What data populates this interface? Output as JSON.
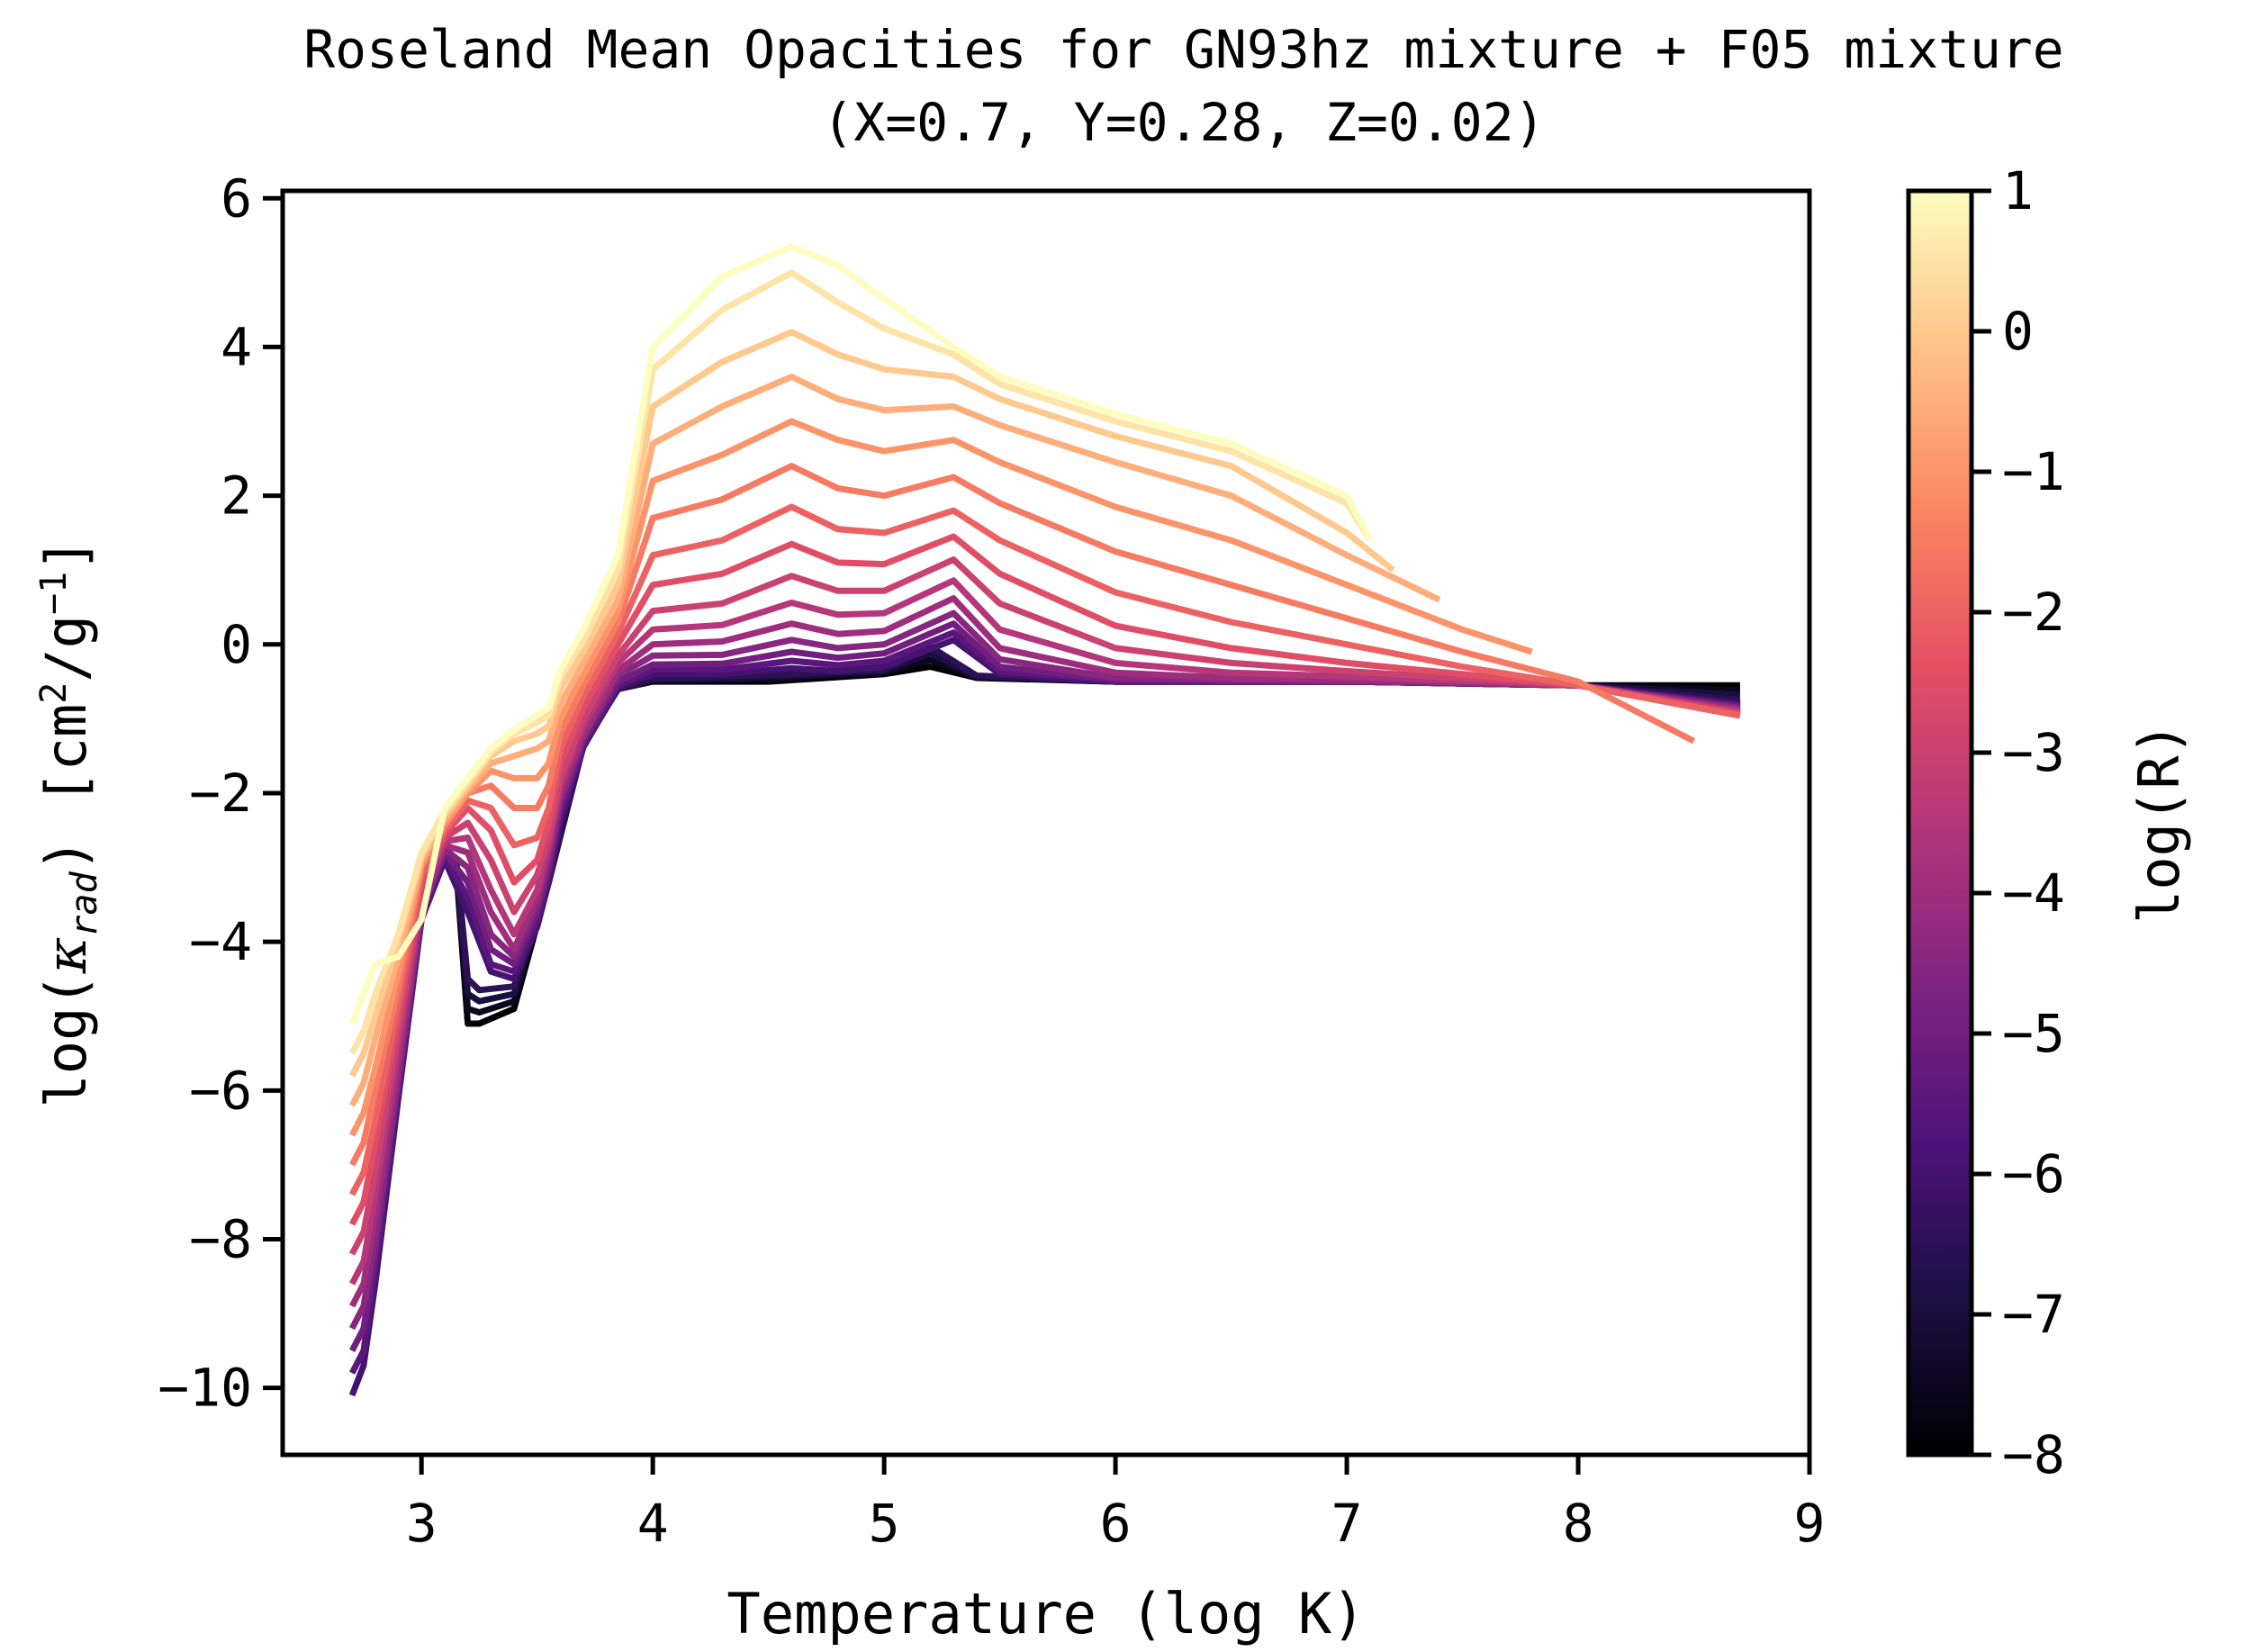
{
  "chart_data": {
    "type": "line",
    "title": "Roseland Mean Opacities for GN93hz mixture + F05 mixture",
    "subtitle": "(X=0.7, Y=0.28, Z=0.02)",
    "xlabel": "Temperature (log K)",
    "ylabel": {
      "prefix": "log(",
      "kappa": "κ",
      "kappa_sub": "rad",
      "mid": ")  [cm",
      "sup1": "2",
      "slash": "/g",
      "sup2": "−1",
      "end": "]"
    },
    "xlim": [
      2.4,
      9.0
    ],
    "ylim": [
      -10.9,
      6.1
    ],
    "xticks": [
      "3",
      "4",
      "5",
      "6",
      "7",
      "8",
      "9"
    ],
    "yticks": [
      "6",
      "4",
      "2",
      "0",
      "−2",
      "−4",
      "−6",
      "−8",
      "−10"
    ],
    "grid": false,
    "legend": "none",
    "colorbar": {
      "label": "log(R)",
      "range": [
        -8,
        1
      ],
      "ticks": [
        "1",
        "0",
        "−1",
        "−2",
        "−3",
        "−4",
        "−5",
        "−6",
        "−7",
        "−8"
      ],
      "colormap": "magma"
    },
    "series_note": "one curve per log(R) from -8 to 1 in steps of 0.5",
    "series": [
      {
        "logR": -8.0,
        "x": [
          3.15,
          3.2,
          3.25,
          3.4,
          3.55,
          3.7,
          3.85,
          4.0,
          4.5,
          5.0,
          5.2,
          5.4,
          6.0,
          7.0,
          8.0,
          8.7
        ],
        "y": [
          -3.0,
          -5.1,
          -5.1,
          -4.9,
          -3.2,
          -1.3,
          -0.6,
          -0.5,
          -0.5,
          -0.4,
          -0.3,
          -0.45,
          -0.5,
          -0.5,
          -0.55,
          -0.55
        ]
      },
      {
        "logR": -7.5,
        "x": [
          3.15,
          3.2,
          3.25,
          3.4,
          3.55,
          3.7,
          3.85,
          4.0,
          4.5,
          5.0,
          5.2,
          5.4,
          6.0,
          7.0,
          8.0,
          8.7
        ],
        "y": [
          -2.97,
          -4.9,
          -4.95,
          -4.8,
          -3.2,
          -1.32,
          -0.6,
          -0.49,
          -0.47,
          -0.38,
          -0.21,
          -0.44,
          -0.5,
          -0.5,
          -0.55,
          -0.62
        ]
      },
      {
        "logR": -7.0,
        "x": [
          3.15,
          3.2,
          3.25,
          3.4,
          3.55,
          3.7,
          3.85,
          4.0,
          4.5,
          5.0,
          5.2,
          5.4,
          6.0,
          7.0,
          8.0,
          8.7
        ],
        "y": [
          -2.93,
          -4.7,
          -4.8,
          -4.7,
          -3.2,
          -1.34,
          -0.6,
          -0.48,
          -0.44,
          -0.36,
          -0.12,
          -0.43,
          -0.5,
          -0.5,
          -0.55,
          -0.68
        ]
      },
      {
        "logR": -6.5,
        "x": [
          3.15,
          3.2,
          3.25,
          3.4,
          3.55,
          3.7,
          3.85,
          4.0,
          4.5,
          5.0,
          5.2,
          5.4,
          6.0,
          7.0,
          8.0,
          8.7
        ],
        "y": [
          -2.9,
          -4.5,
          -4.65,
          -4.6,
          -3.2,
          -1.36,
          -0.6,
          -0.46,
          -0.41,
          -0.34,
          -0.03,
          -0.42,
          -0.5,
          -0.5,
          -0.55,
          -0.75
        ]
      },
      {
        "logR": -6.0,
        "x": [
          2.7,
          2.75,
          2.8,
          2.9,
          3.0,
          3.1,
          3.2,
          3.3,
          3.4,
          3.5,
          3.55,
          3.6,
          3.7,
          3.85,
          4.0,
          4.3,
          4.6,
          4.8,
          5.0,
          5.3,
          5.5,
          6.0,
          7.0,
          8.0,
          8.7
        ],
        "y": [
          -10.1,
          -9.7,
          -8.6,
          -6.1,
          -3.7,
          -2.9,
          -3.6,
          -4.4,
          -4.5,
          -3.8,
          -3.2,
          -2.4,
          -1.38,
          -0.58,
          -0.4,
          -0.4,
          -0.32,
          -0.36,
          -0.3,
          0.06,
          -0.4,
          -0.5,
          -0.5,
          -0.55,
          -0.8
        ]
      },
      {
        "logR": -5.5,
        "x": [
          2.7,
          2.75,
          2.8,
          2.9,
          3.0,
          3.1,
          3.2,
          3.3,
          3.4,
          3.5,
          3.55,
          3.6,
          3.7,
          3.85,
          4.0,
          4.3,
          4.6,
          4.8,
          5.0,
          5.3,
          5.5,
          6.0,
          7.0,
          8.0,
          8.7
        ],
        "y": [
          -9.8,
          -9.5,
          -8.4,
          -6.0,
          -3.7,
          -2.85,
          -3.4,
          -4.3,
          -4.4,
          -3.7,
          -3.1,
          -2.3,
          -1.35,
          -0.55,
          -0.34,
          -0.34,
          -0.22,
          -0.28,
          -0.22,
          0.16,
          -0.36,
          -0.49,
          -0.5,
          -0.55,
          -0.82
        ]
      },
      {
        "logR": -5.0,
        "x": [
          2.7,
          2.75,
          2.8,
          2.9,
          3.0,
          3.1,
          3.2,
          3.3,
          3.4,
          3.5,
          3.55,
          3.6,
          3.7,
          3.85,
          4.0,
          4.3,
          4.6,
          4.8,
          5.0,
          5.3,
          5.5,
          6.0,
          7.0,
          8.0,
          8.7
        ],
        "y": [
          -9.5,
          -9.2,
          -8.2,
          -5.9,
          -3.6,
          -2.8,
          -3.2,
          -4.1,
          -4.3,
          -3.6,
          -3.0,
          -2.2,
          -1.3,
          -0.5,
          -0.27,
          -0.26,
          -0.1,
          -0.18,
          -0.12,
          0.28,
          -0.3,
          -0.48,
          -0.5,
          -0.55,
          -0.84
        ]
      },
      {
        "logR": -4.5,
        "x": [
          2.7,
          2.75,
          2.8,
          2.9,
          3.0,
          3.1,
          3.2,
          3.3,
          3.4,
          3.5,
          3.55,
          3.6,
          3.7,
          3.85,
          4.0,
          4.3,
          4.6,
          4.8,
          5.0,
          5.3,
          5.5,
          6.0,
          7.0,
          8.0,
          8.7
        ],
        "y": [
          -9.2,
          -8.9,
          -8.0,
          -5.8,
          -3.6,
          -2.75,
          -3.0,
          -3.9,
          -4.2,
          -3.5,
          -2.9,
          -2.1,
          -1.25,
          -0.42,
          -0.15,
          -0.14,
          0.06,
          -0.05,
          0.0,
          0.42,
          -0.2,
          -0.45,
          -0.49,
          -0.55,
          -0.86
        ]
      },
      {
        "logR": -4.0,
        "x": [
          2.7,
          2.75,
          2.8,
          2.9,
          3.0,
          3.1,
          3.2,
          3.3,
          3.4,
          3.5,
          3.55,
          3.6,
          3.7,
          3.85,
          4.0,
          4.3,
          4.6,
          4.8,
          5.0,
          5.3,
          5.5,
          6.0,
          6.5,
          7.0,
          8.0,
          8.7
        ],
        "y": [
          -8.9,
          -8.6,
          -7.7,
          -5.6,
          -3.5,
          -2.7,
          -2.8,
          -3.6,
          -4.1,
          -3.4,
          -2.8,
          -2.0,
          -1.2,
          -0.35,
          0.0,
          0.04,
          0.28,
          0.14,
          0.18,
          0.62,
          -0.05,
          -0.38,
          -0.45,
          -0.47,
          -0.55,
          -0.88
        ]
      },
      {
        "logR": -3.5,
        "x": [
          2.7,
          2.75,
          2.8,
          2.9,
          3.0,
          3.1,
          3.2,
          3.3,
          3.4,
          3.5,
          3.55,
          3.6,
          3.7,
          3.85,
          4.0,
          4.3,
          4.6,
          4.8,
          5.0,
          5.3,
          5.5,
          6.0,
          6.5,
          7.0,
          8.0,
          8.7
        ],
        "y": [
          -8.6,
          -8.3,
          -7.4,
          -5.4,
          -3.4,
          -2.65,
          -2.6,
          -3.3,
          -3.9,
          -3.3,
          -2.7,
          -1.9,
          -1.1,
          -0.25,
          0.2,
          0.26,
          0.56,
          0.4,
          0.42,
          0.86,
          0.2,
          -0.25,
          -0.38,
          -0.43,
          -0.55,
          -0.9
        ]
      },
      {
        "logR": -3.0,
        "x": [
          2.7,
          2.75,
          2.8,
          2.9,
          3.0,
          3.1,
          3.2,
          3.3,
          3.4,
          3.5,
          3.55,
          3.6,
          3.7,
          3.85,
          4.0,
          4.3,
          4.6,
          4.8,
          5.0,
          5.3,
          5.5,
          6.0,
          6.5,
          7.0,
          8.0,
          8.7
        ],
        "y": [
          -8.2,
          -7.9,
          -7.1,
          -5.2,
          -3.3,
          -2.6,
          -2.4,
          -2.9,
          -3.6,
          -3.1,
          -2.6,
          -1.8,
          -1.0,
          -0.15,
          0.45,
          0.55,
          0.92,
          0.72,
          0.72,
          1.14,
          0.55,
          -0.05,
          -0.25,
          -0.36,
          -0.55,
          -0.92
        ]
      },
      {
        "logR": -2.5,
        "x": [
          2.7,
          2.75,
          2.8,
          2.9,
          3.0,
          3.1,
          3.2,
          3.3,
          3.4,
          3.5,
          3.55,
          3.6,
          3.7,
          3.85,
          4.0,
          4.3,
          4.6,
          4.8,
          5.0,
          5.3,
          5.5,
          6.0,
          6.5,
          7.0,
          8.0,
          8.7
        ],
        "y": [
          -7.8,
          -7.5,
          -6.7,
          -5.0,
          -3.2,
          -2.55,
          -2.2,
          -2.5,
          -3.2,
          -2.9,
          -2.4,
          -1.6,
          -0.85,
          0.0,
          0.8,
          0.95,
          1.35,
          1.1,
          1.08,
          1.45,
          0.95,
          0.25,
          -0.05,
          -0.25,
          -0.55,
          -0.94
        ]
      },
      {
        "logR": -2.0,
        "x": [
          2.7,
          2.75,
          2.8,
          2.9,
          3.0,
          3.1,
          3.2,
          3.3,
          3.4,
          3.5,
          3.55,
          3.6,
          3.7,
          3.85,
          4.0,
          4.3,
          4.6,
          4.8,
          5.0,
          5.3,
          5.5,
          6.0,
          6.5,
          7.0,
          7.5,
          8.0,
          8.7
        ],
        "y": [
          -7.4,
          -7.1,
          -6.4,
          -4.8,
          -3.1,
          -2.5,
          -2.1,
          -2.2,
          -2.7,
          -2.6,
          -2.2,
          -1.4,
          -0.7,
          0.15,
          1.2,
          1.4,
          1.85,
          1.55,
          1.5,
          1.8,
          1.4,
          0.7,
          0.3,
          0.0,
          -0.3,
          -0.55,
          -0.96
        ]
      },
      {
        "logR": -1.5,
        "x": [
          2.7,
          2.75,
          2.8,
          2.9,
          3.0,
          3.1,
          3.2,
          3.3,
          3.4,
          3.5,
          3.55,
          3.6,
          3.7,
          3.85,
          4.0,
          4.3,
          4.6,
          4.8,
          5.0,
          5.3,
          5.5,
          6.0,
          6.5,
          7.0,
          7.5,
          8.0,
          8.5
        ],
        "y": [
          -7.0,
          -6.7,
          -6.0,
          -4.6,
          -3.0,
          -2.45,
          -2.0,
          -1.9,
          -2.2,
          -2.2,
          -1.9,
          -1.2,
          -0.55,
          0.3,
          1.7,
          1.95,
          2.4,
          2.1,
          2.0,
          2.25,
          1.9,
          1.25,
          0.8,
          0.35,
          -0.1,
          -0.5,
          -1.3
        ]
      },
      {
        "logR": -1.0,
        "x": [
          2.7,
          2.75,
          2.8,
          2.9,
          3.0,
          3.1,
          3.2,
          3.3,
          3.4,
          3.5,
          3.55,
          3.6,
          3.7,
          3.85,
          4.0,
          4.3,
          4.6,
          4.8,
          5.0,
          5.3,
          5.5,
          6.0,
          6.5,
          7.0,
          7.5,
          7.8
        ],
        "y": [
          -6.6,
          -6.3,
          -5.7,
          -4.4,
          -2.95,
          -2.4,
          -2.0,
          -1.7,
          -1.8,
          -1.8,
          -1.6,
          -1.0,
          -0.4,
          0.45,
          2.2,
          2.55,
          3.0,
          2.75,
          2.6,
          2.75,
          2.45,
          1.85,
          1.4,
          0.8,
          0.2,
          -0.1
        ]
      },
      {
        "logR": -0.5,
        "x": [
          2.7,
          2.75,
          2.8,
          2.9,
          3.0,
          3.1,
          3.2,
          3.3,
          3.4,
          3.5,
          3.55,
          3.6,
          3.7,
          3.85,
          4.0,
          4.3,
          4.6,
          4.8,
          5.0,
          5.3,
          5.5,
          6.0,
          6.5,
          7.0,
          7.4
        ],
        "y": [
          -6.2,
          -5.9,
          -5.3,
          -4.2,
          -2.9,
          -2.35,
          -1.95,
          -1.6,
          -1.5,
          -1.4,
          -1.3,
          -0.8,
          -0.25,
          0.6,
          2.7,
          3.2,
          3.6,
          3.3,
          3.15,
          3.2,
          2.95,
          2.45,
          2.0,
          1.2,
          0.6
        ]
      },
      {
        "logR": 0.0,
        "x": [
          2.7,
          2.75,
          2.8,
          2.9,
          3.0,
          3.1,
          3.2,
          3.3,
          3.4,
          3.5,
          3.55,
          3.6,
          3.7,
          3.85,
          4.0,
          4.3,
          4.6,
          4.8,
          5.0,
          5.3,
          5.5,
          6.0,
          6.5,
          7.0,
          7.2
        ],
        "y": [
          -5.8,
          -5.5,
          -5.0,
          -4.0,
          -2.85,
          -2.3,
          -1.9,
          -1.5,
          -1.3,
          -1.2,
          -1.1,
          -0.6,
          -0.1,
          0.8,
          3.2,
          3.8,
          4.2,
          3.9,
          3.7,
          3.6,
          3.3,
          2.8,
          2.4,
          1.5,
          1.0
        ]
      },
      {
        "logR": 0.5,
        "x": [
          2.7,
          2.75,
          2.8,
          2.9,
          3.0,
          3.1,
          3.2,
          3.3,
          3.4,
          3.5,
          3.55,
          3.6,
          3.7,
          3.85,
          4.0,
          4.3,
          4.6,
          4.8,
          5.0,
          5.3,
          5.5,
          6.0,
          6.5,
          7.0,
          7.1
        ],
        "y": [
          -5.5,
          -5.2,
          -4.7,
          -3.9,
          -2.8,
          -2.25,
          -1.85,
          -1.45,
          -1.2,
          -1.05,
          -0.95,
          -0.45,
          0.05,
          1.0,
          3.7,
          4.5,
          5.0,
          4.6,
          4.25,
          3.9,
          3.5,
          3.0,
          2.6,
          1.9,
          1.4
        ]
      },
      {
        "logR": 1.0,
        "x": [
          2.7,
          2.75,
          2.8,
          2.9,
          3.0,
          3.1,
          3.2,
          3.3,
          3.4,
          3.5,
          3.55,
          3.6,
          3.7,
          3.85,
          4.0,
          4.3,
          4.6,
          4.8,
          5.0,
          5.3,
          5.5,
          6.0,
          6.5,
          7.0,
          7.1
        ],
        "y": [
          -5.1,
          -4.7,
          -4.3,
          -4.2,
          -3.7,
          -2.2,
          -1.8,
          -1.4,
          -1.15,
          -0.95,
          -0.85,
          -0.35,
          0.2,
          1.2,
          4.0,
          4.95,
          5.35,
          5.1,
          4.65,
          4.0,
          3.6,
          3.1,
          2.7,
          2.0,
          1.4
        ]
      }
    ]
  }
}
